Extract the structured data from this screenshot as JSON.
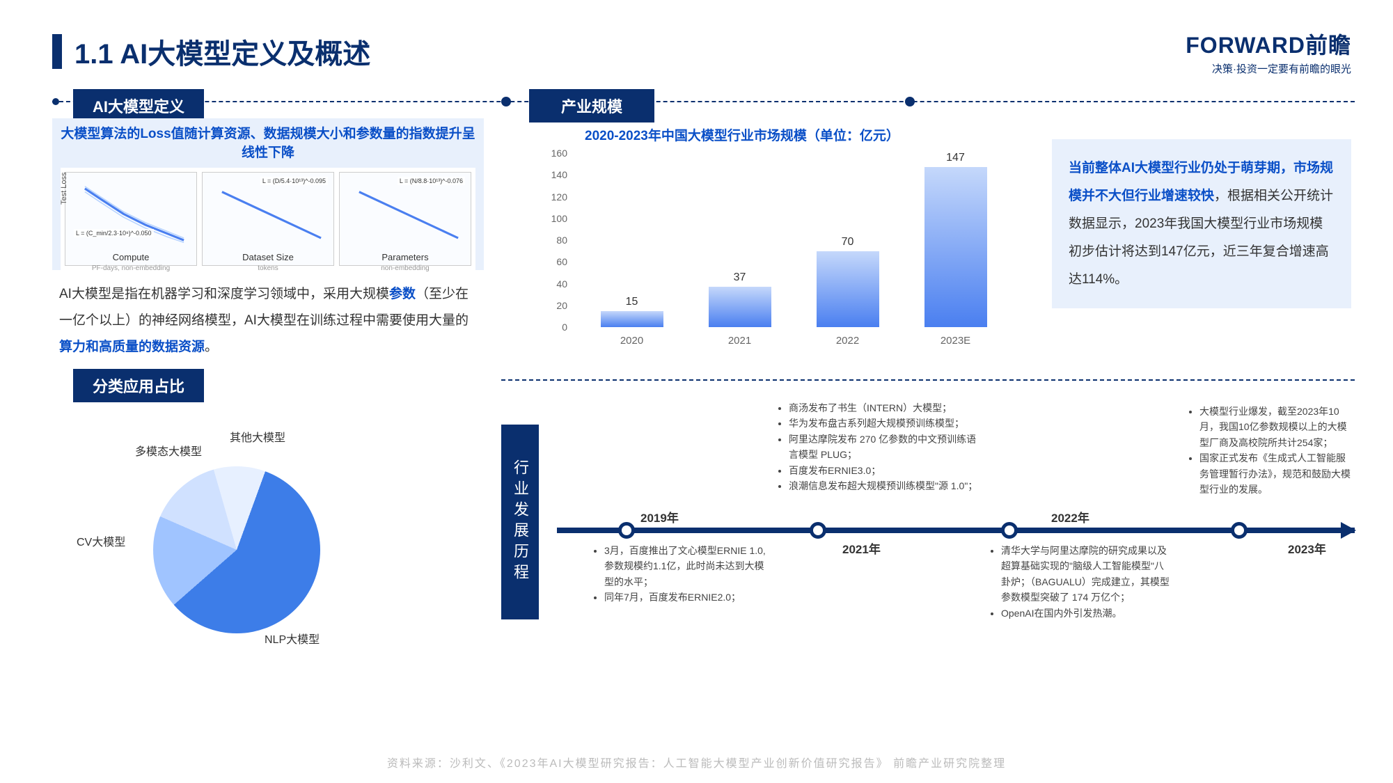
{
  "header": {
    "title": "1.1 AI大模型定义及概述"
  },
  "logo": {
    "main": "FORWARD前瞻",
    "sub": "决策·投资一定要有前瞻的眼光"
  },
  "sections": {
    "definition": "AI大模型定义",
    "scale": "产业规模",
    "category": "分类应用占比"
  },
  "def": {
    "subtitle": "大模型算法的Loss值随计算资源、数据规模大小和参数量的指数提升呈线性下降",
    "charts": [
      {
        "label": "Compute",
        "sublabel": "PF-days, non-embedding",
        "formula": "L = (C_min/2.3·10⁸)^-0.050",
        "formula_pos": "bottom"
      },
      {
        "label": "Dataset Size",
        "sublabel": "tokens",
        "formula": "L = (D/5.4·10¹³)^-0.095",
        "formula_pos": "top"
      },
      {
        "label": "Parameters",
        "sublabel": "non-embedding",
        "formula": "L = (N/8.8·10¹³)^-0.076",
        "formula_pos": "top"
      }
    ],
    "ylabel": "Test Loss",
    "text_pre": "AI大模型是指在机器学习和深度学习领域中，采用大规模",
    "text_hl1": "参数",
    "text_mid": "（至少在一亿个以上）的神经网络模型，AI大模型在训练过程中需要使用大量的",
    "text_hl2": "算力和高质量的数据资源",
    "text_post": "。"
  },
  "bar_chart": {
    "title": "2020-2023年中国大模型行业市场规模（单位：亿元）",
    "ylim": [
      0,
      160
    ],
    "ytick_step": 20,
    "categories": [
      "2020",
      "2021",
      "2022",
      "2023E"
    ],
    "values": [
      15,
      37,
      70,
      147
    ],
    "bar_gradient_start": "#c5d8fb",
    "bar_gradient_end": "#4a7ff0",
    "text_color": "#666666"
  },
  "right_text": {
    "hl1": "当前整体AI大模型行业仍处于萌芽期，市场规模并不大但行业增速较快",
    "rest": "，根据相关公开统计数据显示，2023年我国大模型行业市场规模初步估计将达到147亿元，近三年复合增速高达114%。"
  },
  "pie": {
    "slices": [
      {
        "label": "NLP大模型",
        "value": 58,
        "color": "#3d7de8"
      },
      {
        "label": "CV大模型",
        "value": 18,
        "color": "#a0c4ff"
      },
      {
        "label": "多模态大模型",
        "value": 14,
        "color": "#d0e1ff"
      },
      {
        "label": "其他大模型",
        "value": 10,
        "color": "#e7f0ff"
      }
    ],
    "labels": {
      "nlp": "NLP大模型",
      "cv": "CV大模型",
      "multi": "多模态大模型",
      "other": "其他大模型"
    }
  },
  "timeline": {
    "sidebar": "行业发展历程",
    "years": [
      "2019年",
      "2021年",
      "2022年",
      "2023年"
    ],
    "node_positions_pct": [
      8,
      33,
      58,
      88
    ],
    "items": {
      "y2019": [
        "3月，百度推出了文心模型ERNIE 1.0,参数规模约1.1亿，此时尚未达到大模型的水平；",
        "同年7月，百度发布ERNIE2.0；"
      ],
      "y2021": [
        "商汤发布了书生（INTERN）大模型；",
        "华为发布盘古系列超大规模预训练模型；",
        "阿里达摩院发布 270 亿参数的中文预训练语言模型 PLUG；",
        "百度发布ERNIE3.0；",
        "浪潮信息发布超大规模预训练模型\"源 1.0\"；"
      ],
      "y2022": [
        "清华大学与阿里达摩院的研究成果以及超算基础实现的\"脑级人工智能模型\"八卦炉；（BAGUALU）完成建立，其模型参数模型突破了 174 万亿个；",
        "OpenAI在国内外引发热潮。"
      ],
      "y2023": [
        "大模型行业爆发，截至2023年10月，我国10亿参数规模以上的大模型厂商及高校院所共计254家；",
        "国家正式发布《生成式人工智能服务管理暂行办法》，规范和鼓励大模型行业的发展。"
      ]
    }
  },
  "footer": "资料来源：沙利文、《2023年AI大模型研究报告：人工智能大模型产业创新价值研究报告》 前瞻产业研究院整理"
}
